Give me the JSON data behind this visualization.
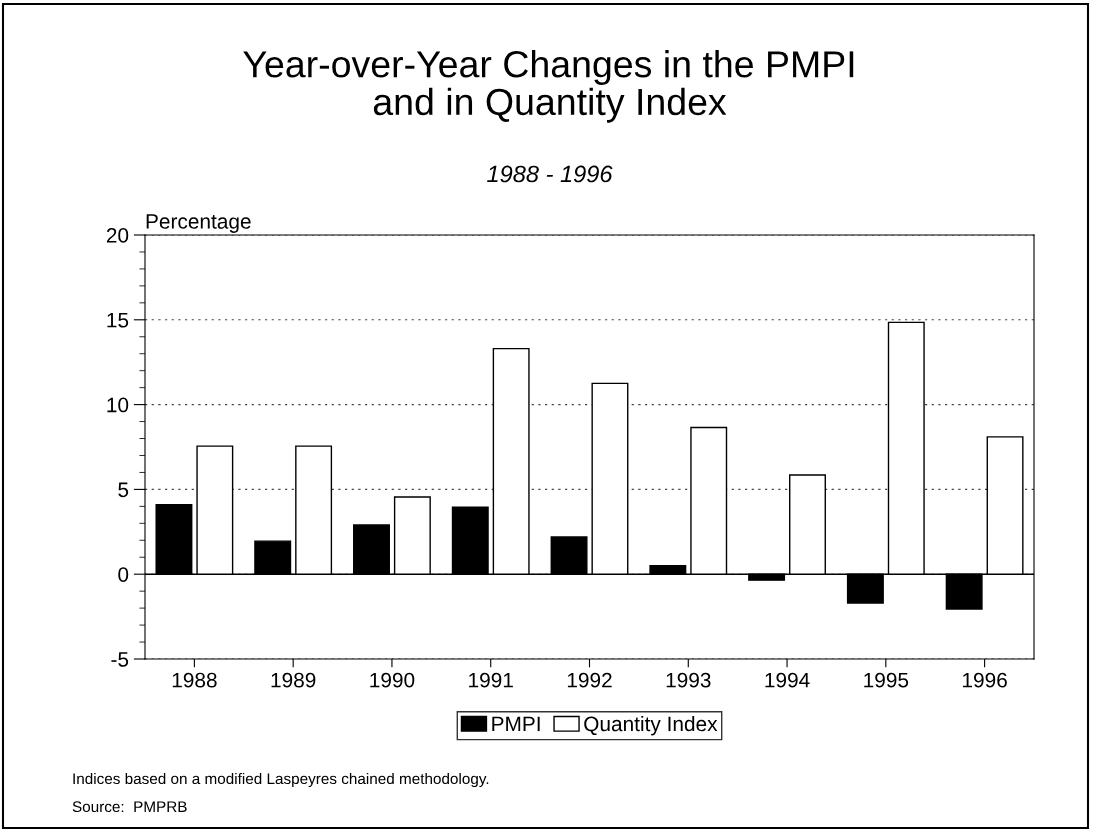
{
  "chart_data": {
    "type": "bar",
    "title": "Year-over-Year Changes in the PMPI\nand in Quantity Index",
    "subtitle": "1988 - 1996",
    "ylabel": "Percentage",
    "categories": [
      "1988",
      "1989",
      "1990",
      "1991",
      "1992",
      "1993",
      "1994",
      "1995",
      "1996"
    ],
    "series": [
      {
        "name": "PMPI",
        "color": "#000000",
        "values": [
          4.1,
          1.95,
          2.9,
          3.95,
          2.2,
          0.5,
          -0.35,
          -1.7,
          -2.05
        ]
      },
      {
        "name": "Quantity Index",
        "color": "#ffffff",
        "values": [
          7.55,
          7.55,
          4.55,
          13.3,
          11.25,
          8.65,
          5.85,
          14.85,
          8.1
        ]
      }
    ],
    "ylim": [
      -5,
      20
    ],
    "yticks": [
      {
        "value": -5,
        "label": "-5"
      },
      0,
      5,
      10,
      15,
      20
    ],
    "grid": "y",
    "legend": "bottom",
    "ref_lines": [
      {
        "axis": "y",
        "value": 0,
        "color": "#000000",
        "line_style": "solid"
      }
    ],
    "annotations": [
      "Indices based on a modified Laspeyres chained methodology.",
      "Source:  PMPRB"
    ]
  }
}
